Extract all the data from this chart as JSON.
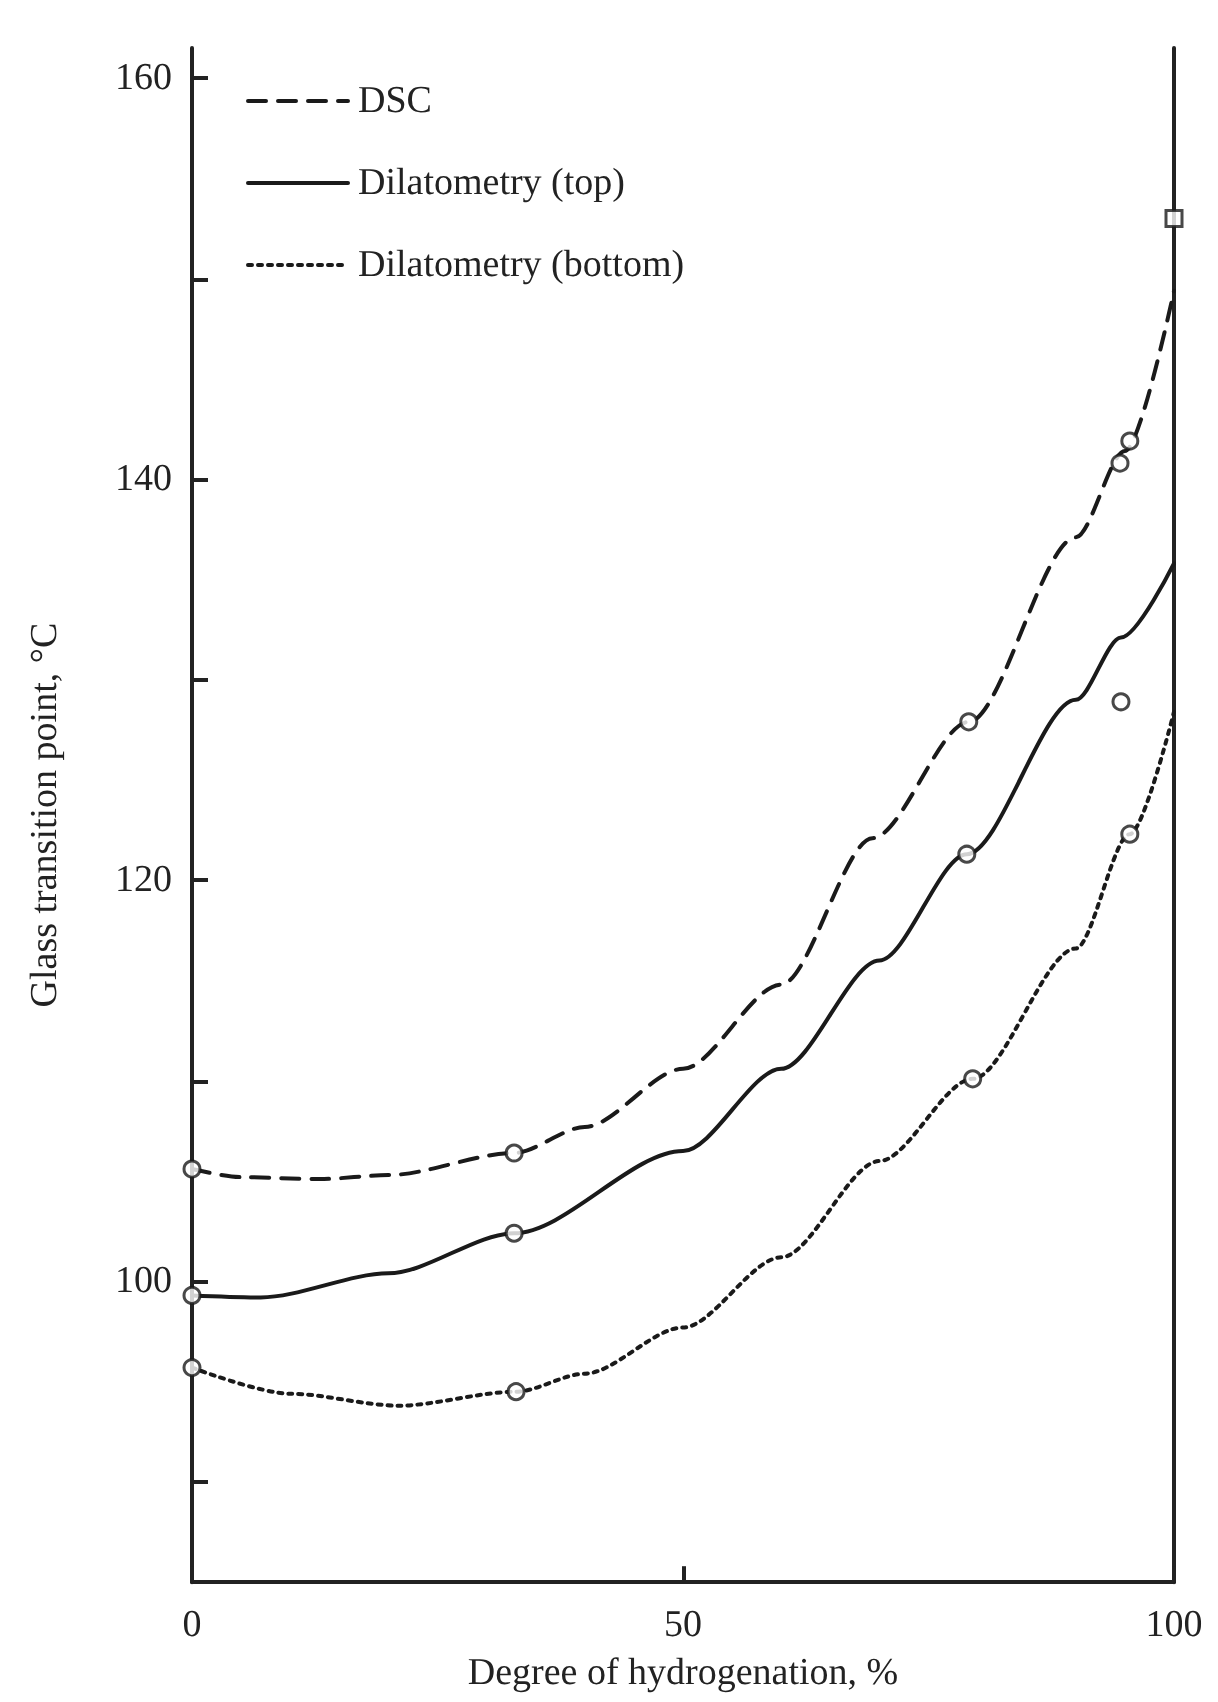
{
  "chart_data": {
    "type": "line",
    "xlabel": "Degree of hydrogenation, %",
    "ylabel": "Glass transition point, °C",
    "xlim": [
      0,
      100
    ],
    "xticks": [
      0,
      50,
      100
    ],
    "ylim": [
      85,
      161.5
    ],
    "yticks": [
      {
        "value": 90,
        "label": null
      },
      100,
      {
        "value": 110,
        "label": null
      },
      120,
      {
        "value": 130,
        "label": null
      },
      140,
      {
        "value": 150,
        "label": null
      },
      160
    ],
    "grid": false,
    "legend": "top left",
    "series": [
      {
        "name": "DSC",
        "color": "#1a1a1a",
        "line_style": "dashed",
        "marker": "none",
        "x": [
          0,
          5,
          13,
          20,
          32.8,
          40,
          50,
          60,
          69.3,
          79.1,
          90,
          95,
          100
        ],
        "values": [
          105.6,
          105.2,
          105.1,
          105.3,
          106.4,
          107.7,
          110.6,
          114.8,
          122.1,
          127.9,
          137.1,
          141.4,
          149.4
        ]
      },
      {
        "name": "Dilatometry (top)",
        "color": "#1a1a1a",
        "line_style": "solid",
        "marker": "none",
        "x": [
          0,
          7,
          20,
          32.8,
          50,
          60,
          70,
          78.9,
          90,
          94.6,
          100
        ],
        "values": [
          99.3,
          99.2,
          100.4,
          102.4,
          106.5,
          110.6,
          116,
          121.3,
          129,
          132.1,
          135.8
        ]
      },
      {
        "name": "Dilatometry (bottom)",
        "color": "#1a1a1a",
        "line_style": "dotted",
        "marker": "none",
        "x": [
          0,
          10,
          21,
          33,
          40,
          50,
          60,
          70,
          79.5,
          90,
          95.5,
          100
        ],
        "values": [
          95.7,
          94.4,
          93.8,
          94.5,
          95.4,
          97.7,
          101.2,
          106,
          110.1,
          116.6,
          122.3,
          128.4
        ]
      },
      {
        "type": "scatter",
        "color": "#1a1a1a",
        "marker": "circle",
        "x": [
          0,
          32.8,
          79.1,
          94.5,
          95.5
        ],
        "values": [
          105.6,
          106.4,
          127.9,
          140.8,
          141.9
        ]
      },
      {
        "type": "scatter",
        "color": "#1a1a1a",
        "marker": "square",
        "x": [
          100
        ],
        "values": [
          153.0
        ]
      },
      {
        "type": "scatter",
        "color": "#1a1a1a",
        "marker": "circle",
        "x": [
          0,
          32.8,
          78.9,
          94.6
        ],
        "values": [
          99.3,
          102.4,
          121.3,
          128.9
        ]
      },
      {
        "type": "scatter",
        "color": "#1a1a1a",
        "marker": "circle",
        "x": [
          0,
          33,
          79.5,
          95.5
        ],
        "values": [
          95.7,
          94.5,
          110.1,
          122.3
        ]
      }
    ]
  }
}
